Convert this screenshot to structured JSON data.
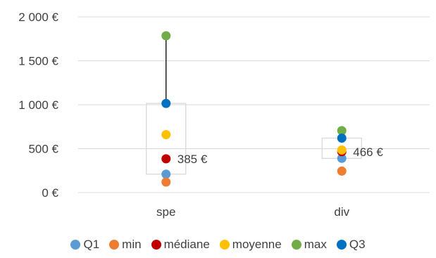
{
  "chart_data": {
    "type": "scatter",
    "categories": [
      "spe",
      "div"
    ],
    "ylim": [
      0,
      2000
    ],
    "y_ticks": [
      0,
      500,
      1000,
      1500,
      2000
    ],
    "y_tick_labels": [
      "0 €",
      "500 €",
      "1 000 €",
      "1 500 €",
      "2 000 €"
    ],
    "grid": true,
    "legend_position": "bottom",
    "series": [
      {
        "name": "Q1",
        "color": "#5b9bd5",
        "values": [
          210,
          390
        ]
      },
      {
        "name": "min",
        "color": "#ed7d31",
        "values": [
          120,
          245
        ]
      },
      {
        "name": "médiane",
        "color": "#c00000",
        "values": [
          385,
          466
        ]
      },
      {
        "name": "moyenne",
        "color": "#ffc000",
        "values": [
          660,
          485
        ]
      },
      {
        "name": "max",
        "color": "#70ad47",
        "values": [
          1785,
          705
        ]
      },
      {
        "name": "Q3",
        "color": "#0070c0",
        "values": [
          1015,
          620
        ]
      }
    ],
    "data_labels": [
      {
        "category": "spe",
        "series": "médiane",
        "text": "385 €"
      },
      {
        "category": "div",
        "series": "médiane",
        "text": "466 €"
      }
    ]
  }
}
